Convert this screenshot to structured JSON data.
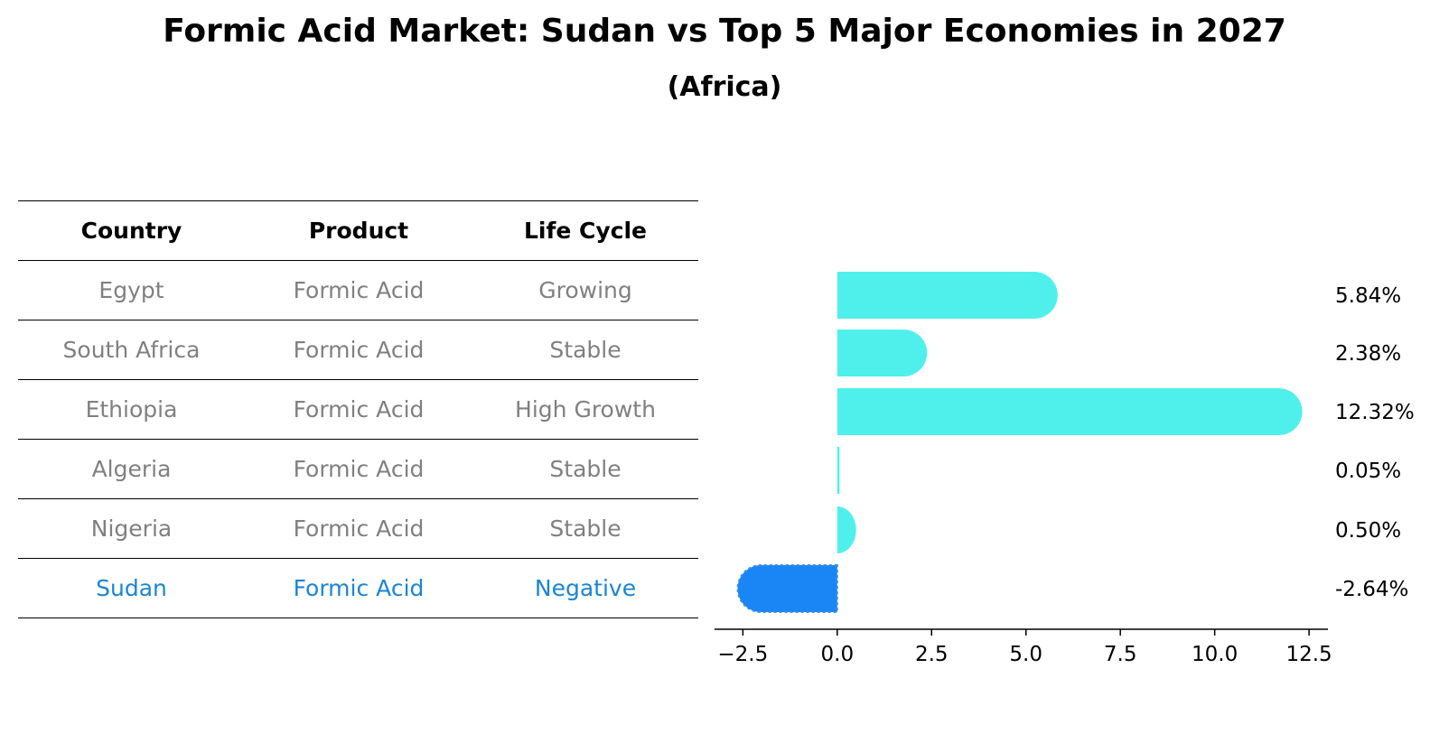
{
  "title": "Formic Acid Market: Sudan vs Top 5 Major Economies in 2027",
  "subtitle": "(Africa)",
  "table": {
    "headers": [
      "Country",
      "Product",
      "Life Cycle"
    ],
    "rows": [
      {
        "country": "Egypt",
        "product": "Formic Acid",
        "life_cycle": "Growing",
        "highlight": false
      },
      {
        "country": "South Africa",
        "product": "Formic Acid",
        "life_cycle": "Stable",
        "highlight": false
      },
      {
        "country": "Ethiopia",
        "product": "Formic Acid",
        "life_cycle": "High Growth",
        "highlight": false
      },
      {
        "country": "Algeria",
        "product": "Formic Acid",
        "life_cycle": "Stable",
        "highlight": false
      },
      {
        "country": "Nigeria",
        "product": "Formic Acid",
        "life_cycle": "Stable",
        "highlight": false
      },
      {
        "country": "Sudan",
        "product": "Formic Acid",
        "life_cycle": "Negative",
        "highlight": true
      }
    ]
  },
  "chart_data": {
    "type": "bar",
    "orientation": "horizontal",
    "title": "Formic Acid Market: Sudan vs Top 5 Major Economies in 2027",
    "subtitle": "(Africa)",
    "categories": [
      "Egypt",
      "South Africa",
      "Ethiopia",
      "Algeria",
      "Nigeria",
      "Sudan"
    ],
    "values": [
      5.84,
      2.38,
      12.32,
      0.05,
      0.5,
      -2.64
    ],
    "value_labels": [
      "5.84%",
      "2.38%",
      "12.32%",
      "0.05%",
      "0.50%",
      "-2.64%"
    ],
    "xlim": [
      -3.25,
      13.0
    ],
    "xticks": [
      -2.5,
      0.0,
      2.5,
      5.0,
      7.5,
      10.0,
      12.5
    ],
    "xtick_labels": [
      "−2.5",
      "0.0",
      "2.5",
      "5.0",
      "7.5",
      "10.0",
      "12.5"
    ],
    "xlabel": "",
    "ylabel": "",
    "grid": false,
    "colors": {
      "default": "#4ff0ec",
      "highlight": "#1a85f5",
      "highlight_text": "#1a85d6"
    }
  }
}
